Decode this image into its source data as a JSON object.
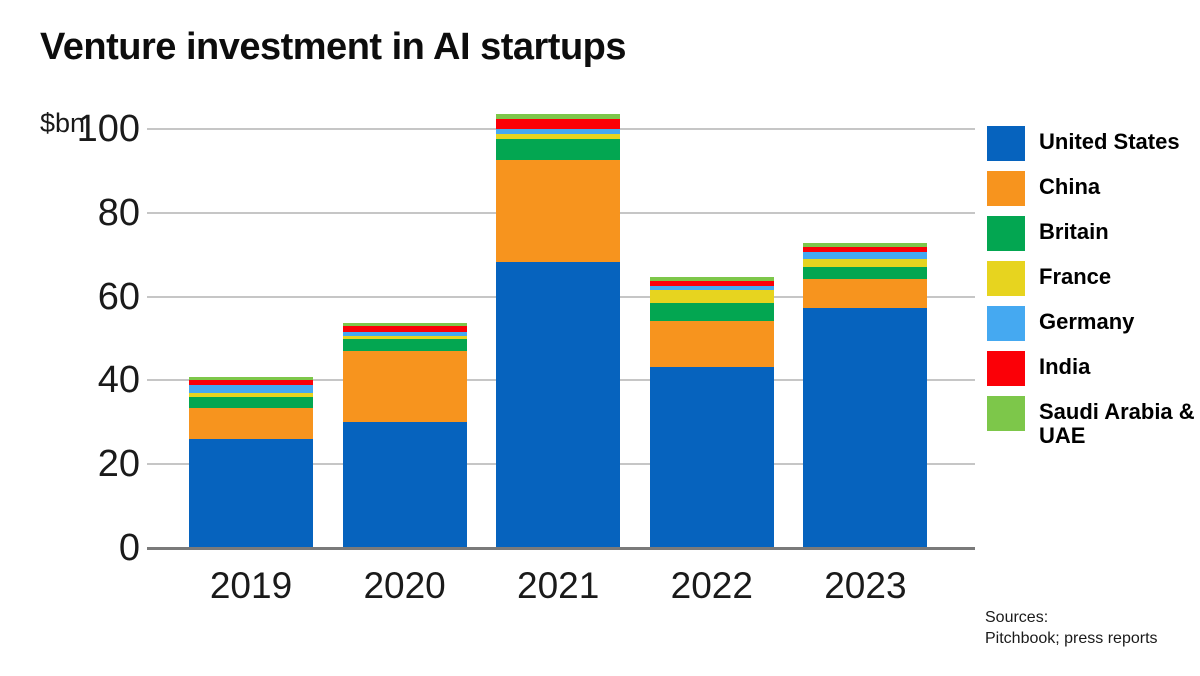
{
  "chart_data": {
    "type": "bar",
    "stacked": true,
    "title": "Venture investment in AI startups",
    "unit_label": "$bn",
    "categories": [
      "2019",
      "2020",
      "2021",
      "2022",
      "2023"
    ],
    "series": [
      {
        "name": "United States",
        "color": "#0663BE",
        "values": [
          26.0,
          30.0,
          68.3,
          43.2,
          57.3
        ]
      },
      {
        "name": "China",
        "color": "#F7941E",
        "values": [
          7.5,
          17.1,
          24.4,
          11.0,
          6.8
        ]
      },
      {
        "name": "Britain",
        "color": "#03A651",
        "values": [
          2.5,
          2.7,
          4.8,
          4.4,
          2.9
        ]
      },
      {
        "name": "France",
        "color": "#E7D41F",
        "values": [
          1.0,
          0.8,
          1.2,
          2.9,
          2.1
        ]
      },
      {
        "name": "Germany",
        "color": "#45A9F1",
        "values": [
          2.0,
          1.0,
          1.4,
          1.0,
          1.6
        ]
      },
      {
        "name": "India",
        "color": "#FB0007",
        "values": [
          1.0,
          1.4,
          2.4,
          1.3,
          1.2
        ]
      },
      {
        "name": "Saudi Arabia & UAE",
        "color": "#7DC74A",
        "values": [
          0.9,
          0.8,
          1.0,
          0.9,
          1.0
        ]
      }
    ],
    "totals": [
      40.9,
      53.8,
      103.5,
      64.7,
      72.9
    ],
    "yticks": [
      0,
      20,
      40,
      60,
      80,
      100
    ],
    "ylim": [
      0,
      100
    ],
    "grid": "horizontal",
    "legend_position": "right",
    "source_label": "Sources:",
    "source_text": "Pitchbook; press reports",
    "colors": {
      "gridline": "#c6c6c6",
      "baseline": "#7a7a7a",
      "axis_text": "#1a1a1a"
    }
  }
}
